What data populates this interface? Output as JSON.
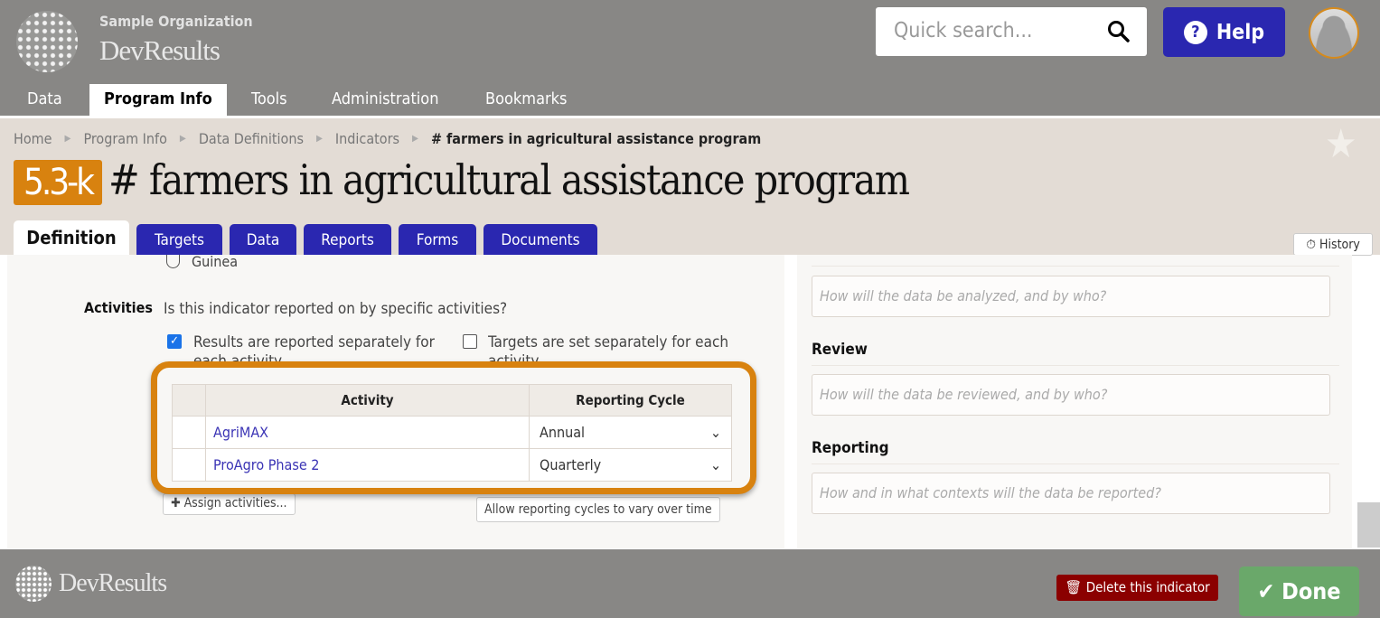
{
  "header": {
    "org": "Sample Organization",
    "brand": "DevResults",
    "search_placeholder": "Quick search...",
    "help": "Help"
  },
  "nav": [
    "Data",
    "Program Info",
    "Tools",
    "Administration",
    "Bookmarks"
  ],
  "breadcrumb": [
    "Home",
    "Program Info",
    "Data Definitions",
    "Indicators",
    "# farmers in agricultural assistance program"
  ],
  "indicator": {
    "code": "5.3-k",
    "title": "# farmers in agricultural assistance program"
  },
  "tabs": [
    "Definition",
    "Targets",
    "Data",
    "Reports",
    "Forms",
    "Documents"
  ],
  "history": "History",
  "left": {
    "radio_option": "Guinea",
    "activities_label": "Activities",
    "question": "Is this indicator reported on by specific activities?",
    "results_checkbox": "Results are reported separately for each activity",
    "results_checked": true,
    "targets_checkbox": "Targets are set separately for each activity",
    "targets_checked": false,
    "table": {
      "headers": [
        "",
        "Activity",
        "Reporting Cycle"
      ],
      "rows": [
        {
          "activity": "AgriMAX",
          "cycle": "Annual"
        },
        {
          "activity": "ProAgro Phase 2",
          "cycle": "Quarterly"
        }
      ]
    },
    "assign": "Assign activities...",
    "vary": "Allow reporting cycles to vary over time"
  },
  "right": {
    "analysis_placeholder": "How will the data be analyzed, and by who?",
    "review_label": "Review",
    "review_placeholder": "How will the data be reviewed, and by who?",
    "reporting_label": "Reporting",
    "reporting_placeholder": "How and in what contexts will the data be reported?"
  },
  "footer": {
    "brand": "DevResults",
    "delete": "Delete this indicator",
    "done": "Done"
  },
  "colors": {
    "accent": "#2a27b0",
    "badge": "#d8820f",
    "delete": "#8b0000",
    "done": "#6aa86a"
  }
}
